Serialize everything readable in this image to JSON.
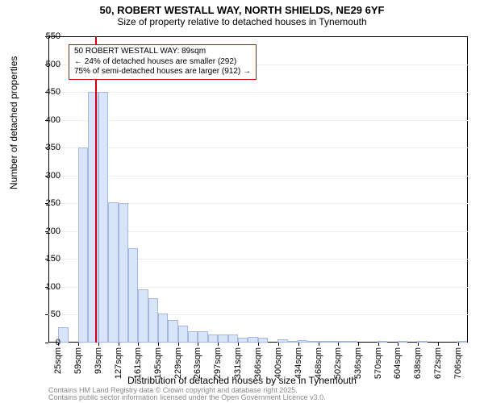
{
  "title": "50, ROBERT WESTALL WAY, NORTH SHIELDS, NE29 6YF",
  "subtitle": "Size of property relative to detached houses in Tynemouth",
  "ylabel": "Number of detached properties",
  "xlabel": "Distribution of detached houses by size in Tynemouth",
  "footnote1": "Contains HM Land Registry data © Crown copyright and database right 2025.",
  "footnote2": "Contains public sector information licensed under the Open Government Licence v3.0.",
  "annotation_line1": "50 ROBERT WESTALL WAY: 89sqm",
  "annotation_line2": "← 24% of detached houses are smaller (292)",
  "annotation_line3": "75% of semi-detached houses are larger (912) →",
  "chart": {
    "type": "histogram",
    "background_color": "#ffffff",
    "border_color": "#000000",
    "grid_color": "#dddddd",
    "bar_fill": "#d7e4fa",
    "bar_stroke": "#a6b8e0",
    "marker_color": "#cc0000",
    "marker_value": 89,
    "ylim": [
      0,
      550
    ],
    "ytick_step": 50,
    "xlim": [
      8,
      723
    ],
    "bin_width": 17,
    "bins": [
      {
        "start": 8,
        "count": 0
      },
      {
        "start": 25,
        "count": 28
      },
      {
        "start": 42,
        "count": 0
      },
      {
        "start": 59,
        "count": 350
      },
      {
        "start": 76,
        "count": 450
      },
      {
        "start": 93,
        "count": 450
      },
      {
        "start": 110,
        "count": 252
      },
      {
        "start": 127,
        "count": 250
      },
      {
        "start": 144,
        "count": 170
      },
      {
        "start": 161,
        "count": 95
      },
      {
        "start": 178,
        "count": 80
      },
      {
        "start": 195,
        "count": 52
      },
      {
        "start": 212,
        "count": 40
      },
      {
        "start": 229,
        "count": 30
      },
      {
        "start": 246,
        "count": 20
      },
      {
        "start": 263,
        "count": 20
      },
      {
        "start": 280,
        "count": 15
      },
      {
        "start": 297,
        "count": 15
      },
      {
        "start": 314,
        "count": 15
      },
      {
        "start": 331,
        "count": 8
      },
      {
        "start": 348,
        "count": 10
      },
      {
        "start": 365,
        "count": 8
      },
      {
        "start": 382,
        "count": 0
      },
      {
        "start": 399,
        "count": 6
      },
      {
        "start": 416,
        "count": 2
      },
      {
        "start": 433,
        "count": 5
      },
      {
        "start": 450,
        "count": 3
      },
      {
        "start": 467,
        "count": 2
      },
      {
        "start": 484,
        "count": 3
      },
      {
        "start": 501,
        "count": 3
      },
      {
        "start": 518,
        "count": 3
      },
      {
        "start": 535,
        "count": 0
      },
      {
        "start": 552,
        "count": 0
      },
      {
        "start": 569,
        "count": 2
      },
      {
        "start": 586,
        "count": 0
      },
      {
        "start": 603,
        "count": 2
      },
      {
        "start": 620,
        "count": 0
      },
      {
        "start": 637,
        "count": 2
      },
      {
        "start": 654,
        "count": 0
      },
      {
        "start": 671,
        "count": 0
      },
      {
        "start": 688,
        "count": 0
      },
      {
        "start": 705,
        "count": 2
      }
    ],
    "xticks": [
      25,
      59,
      93,
      127,
      161,
      195,
      229,
      263,
      297,
      331,
      366,
      400,
      434,
      468,
      502,
      536,
      570,
      604,
      638,
      672,
      706
    ],
    "xtick_suffix": "sqm",
    "label_fontsize": 12,
    "tick_fontsize": 11,
    "title_fontsize": 13
  }
}
